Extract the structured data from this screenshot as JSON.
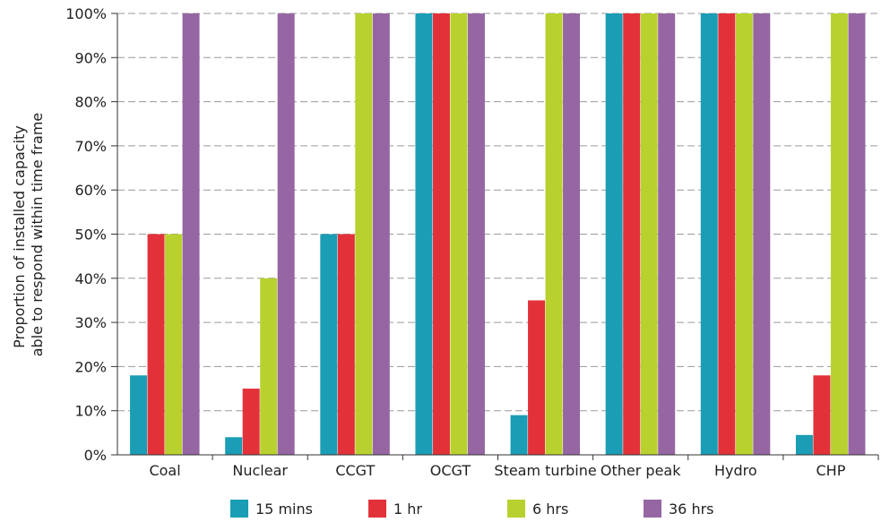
{
  "chart_data": {
    "type": "bar",
    "categories": [
      "Coal",
      "Nuclear",
      "CCGT",
      "OCGT",
      "Steam turbine",
      "Other peak",
      "Hydro",
      "CHP"
    ],
    "series": [
      {
        "name": "15 mins",
        "color": "#1a9db5",
        "values": [
          18,
          4,
          50,
          100,
          9,
          100,
          100,
          4.5
        ]
      },
      {
        "name": "1 hr",
        "color": "#e3313a",
        "values": [
          50,
          15,
          50,
          100,
          35,
          100,
          100,
          18
        ]
      },
      {
        "name": "6 hrs",
        "color": "#b9d12e",
        "values": [
          50,
          40,
          100,
          100,
          100,
          100,
          100,
          100
        ]
      },
      {
        "name": "36 hrs",
        "color": "#9566a2",
        "values": [
          100,
          100,
          100,
          100,
          100,
          100,
          100,
          100
        ]
      }
    ],
    "ylabel_lines": [
      "Proportion of installed capacity",
      "able to respond within time frame"
    ],
    "yticks": [
      "0%",
      "10%",
      "20%",
      "30%",
      "40%",
      "50%",
      "60%",
      "70%",
      "80%",
      "90%",
      "100%"
    ],
    "ylim": [
      0,
      100
    ],
    "grid": true,
    "legend_position": "bottom"
  }
}
